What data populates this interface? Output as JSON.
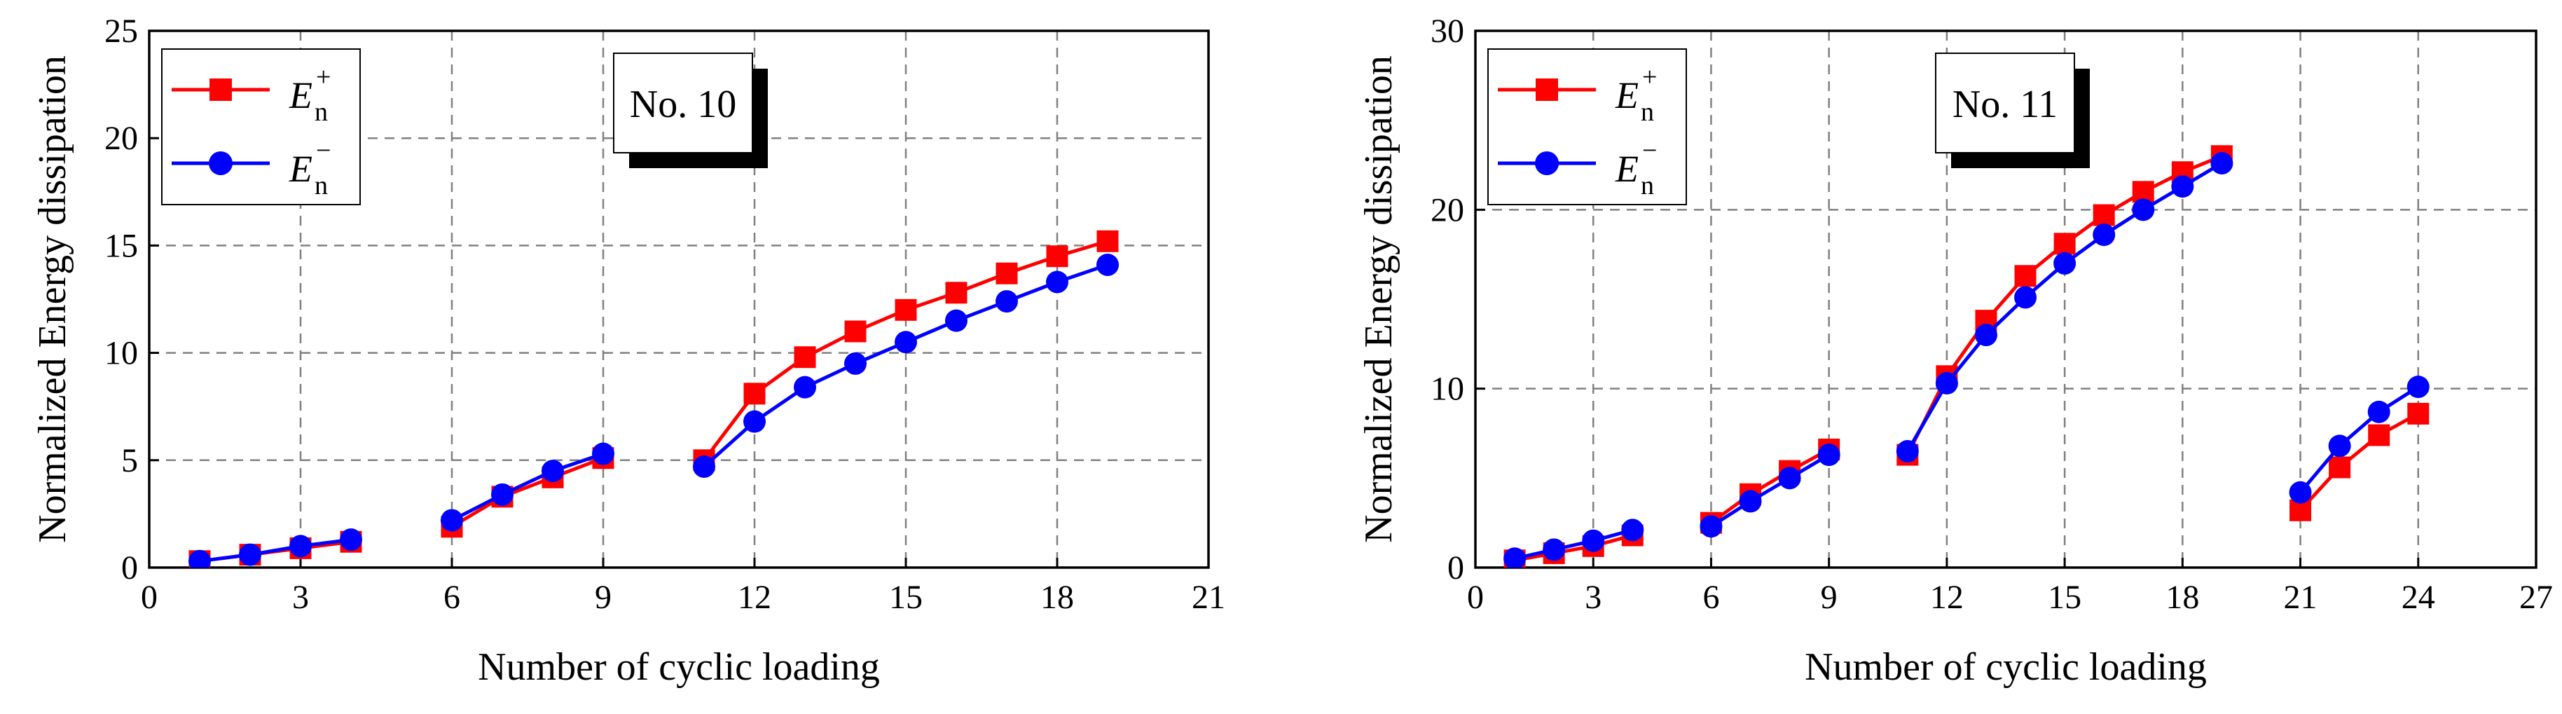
{
  "colors": {
    "pos": "#ff0000",
    "neg": "#0000ff",
    "grid": "#808080",
    "axis": "#000000"
  },
  "chart_data": [
    {
      "type": "line",
      "panel_label": "No. 10",
      "xlabel": "Number of cyclic loading",
      "ylabel": "Normalized Energy dissipation",
      "xlim": [
        0,
        21
      ],
      "ylim": [
        0,
        25
      ],
      "xticks": [
        "0",
        "3",
        "6",
        "9",
        "12",
        "15",
        "18",
        "21"
      ],
      "yticks": [
        "0",
        "5",
        "10",
        "15",
        "20",
        "25"
      ],
      "grid": true,
      "legend_position": "top-left",
      "series": [
        {
          "name": "E_n^+",
          "label_base": "E",
          "label_sub": "n",
          "label_sup": "+",
          "color": "#ff0000",
          "marker": "square",
          "segments": [
            {
              "x": [
                1,
                2,
                3,
                4
              ],
              "y": [
                0.3,
                0.6,
                0.9,
                1.2
              ]
            },
            {
              "x": [
                6,
                7,
                8,
                9
              ],
              "y": [
                1.9,
                3.3,
                4.2,
                5.1
              ]
            },
            {
              "x": [
                11,
                12,
                13,
                14,
                15,
                16,
                17,
                18,
                19
              ],
              "y": [
                5.0,
                8.1,
                9.8,
                11.0,
                12.0,
                12.8,
                13.7,
                14.5,
                15.2
              ]
            }
          ]
        },
        {
          "name": "E_n^-",
          "label_base": "E",
          "label_sub": "n",
          "label_sup": "−",
          "color": "#0000ff",
          "marker": "circle",
          "segments": [
            {
              "x": [
                1,
                2,
                3,
                4
              ],
              "y": [
                0.3,
                0.6,
                1.0,
                1.3
              ]
            },
            {
              "x": [
                6,
                7,
                8,
                9
              ],
              "y": [
                2.2,
                3.4,
                4.5,
                5.3
              ]
            },
            {
              "x": [
                11,
                12,
                13,
                14,
                15,
                16,
                17,
                18,
                19
              ],
              "y": [
                4.7,
                6.8,
                8.4,
                9.5,
                10.5,
                11.5,
                12.4,
                13.3,
                14.1
              ]
            }
          ]
        }
      ]
    },
    {
      "type": "line",
      "panel_label": "No. 11",
      "xlabel": "Number of cyclic loading",
      "ylabel": "Normalized Energy dissipation",
      "xlim": [
        0,
        27
      ],
      "ylim": [
        0,
        30
      ],
      "xticks": [
        "0",
        "3",
        "6",
        "9",
        "12",
        "15",
        "18",
        "21",
        "24",
        "27"
      ],
      "yticks": [
        "0",
        "10",
        "20",
        "30"
      ],
      "grid": true,
      "legend_position": "top-left",
      "series": [
        {
          "name": "E_n^+",
          "label_base": "E",
          "label_sub": "n",
          "label_sup": "+",
          "color": "#ff0000",
          "marker": "square",
          "segments": [
            {
              "x": [
                1,
                2,
                3,
                4
              ],
              "y": [
                0.4,
                0.8,
                1.2,
                1.8
              ]
            },
            {
              "x": [
                6,
                7,
                8,
                9
              ],
              "y": [
                2.5,
                4.1,
                5.4,
                6.6
              ]
            },
            {
              "x": [
                11,
                12,
                13,
                14,
                15,
                16,
                17,
                18,
                19
              ],
              "y": [
                6.3,
                10.7,
                13.8,
                16.3,
                18.1,
                19.7,
                21.0,
                22.1,
                23.0
              ]
            },
            {
              "x": [
                21,
                22,
                23,
                24
              ],
              "y": [
                3.2,
                5.6,
                7.4,
                8.6
              ]
            }
          ]
        },
        {
          "name": "E_n^-",
          "label_base": "E",
          "label_sub": "n",
          "label_sup": "−",
          "color": "#0000ff",
          "marker": "circle",
          "segments": [
            {
              "x": [
                1,
                2,
                3,
                4
              ],
              "y": [
                0.5,
                1.0,
                1.5,
                2.1
              ]
            },
            {
              "x": [
                6,
                7,
                8,
                9
              ],
              "y": [
                2.3,
                3.7,
                5.0,
                6.3
              ]
            },
            {
              "x": [
                11,
                12,
                13,
                14,
                15,
                16,
                17,
                18,
                19
              ],
              "y": [
                6.5,
                10.3,
                13.0,
                15.1,
                17.0,
                18.6,
                20.0,
                21.3,
                22.6
              ]
            },
            {
              "x": [
                21,
                22,
                23,
                24
              ],
              "y": [
                4.2,
                6.8,
                8.7,
                10.1
              ]
            }
          ]
        }
      ]
    }
  ]
}
